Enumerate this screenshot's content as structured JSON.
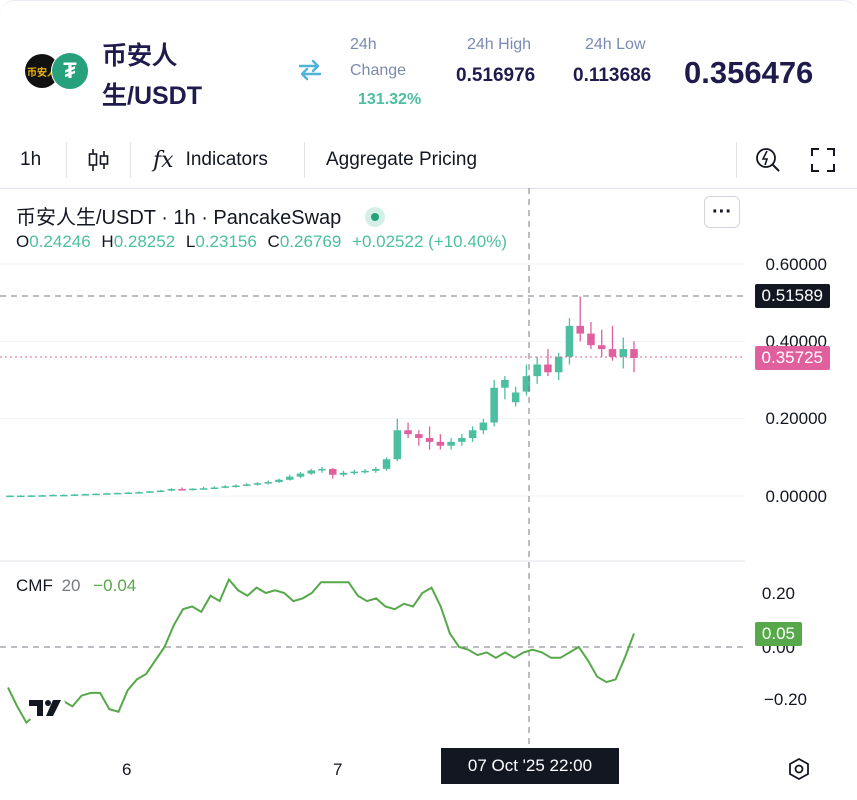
{
  "header": {
    "pair_line1": "币安人",
    "pair_line2": "生/USDT",
    "logo_left_text": "币安人",
    "logo_right_text": "₮",
    "change_label_1": "24h",
    "change_label_2": "Change",
    "change_value": "131.32%",
    "high_label": "24h High",
    "high_value": "0.516976",
    "low_label": "24h Low",
    "low_value": "0.113686",
    "price": "0.356476"
  },
  "toolbar": {
    "interval": "1h",
    "indicators": "Indicators",
    "aggregate": "Aggregate Pricing",
    "fx_icon": "fx"
  },
  "legend": {
    "title": "币安人生/USDT · 1h · PancakeSwap",
    "o_label": "O",
    "o_val": "0.24246",
    "h_label": "H",
    "h_val": "0.28252",
    "l_label": "L",
    "l_val": "0.23156",
    "c_label": "C",
    "c_val": "0.26769",
    "change": "+0.02522 (+10.40%)",
    "more": "···"
  },
  "price_axis": {
    "labels": [
      "0.60000",
      "0.40000",
      "0.20000",
      "0.00000"
    ],
    "crosshair_tag": "0.51589",
    "last_price_tag": "0.35725"
  },
  "cmf": {
    "label": "CMF",
    "period": "20",
    "value": "−0.04",
    "axis_labels": [
      "0.20",
      "0.00",
      "−0.20"
    ],
    "current_tag": "0.05"
  },
  "time_axis": {
    "labels": [
      "6",
      "7"
    ],
    "crosshair_time": "07 Oct '25   22:00"
  },
  "colors": {
    "up": "#4cbfa0",
    "down": "#e0609e",
    "cmf_line": "#57a84a",
    "accent_navy": "#1f1b4d"
  },
  "icons": [
    "swap-arrows-icon",
    "candles-icon",
    "fx-icon",
    "replay-icon",
    "fullscreen-icon",
    "settings-hex-icon",
    "tradingview-logo-icon"
  ],
  "chart_data": {
    "type": "candlestick",
    "price_ylim": [
      0.0,
      0.6
    ],
    "candles": [
      [
        0.001,
        0.002,
        0.0,
        0.001
      ],
      [
        0.001,
        0.002,
        0.0,
        0.001
      ],
      [
        0.001,
        0.002,
        0.0,
        0.0015
      ],
      [
        0.0015,
        0.003,
        0.001,
        0.002
      ],
      [
        0.002,
        0.004,
        0.001,
        0.003
      ],
      [
        0.003,
        0.004,
        0.002,
        0.003
      ],
      [
        0.003,
        0.005,
        0.002,
        0.004
      ],
      [
        0.004,
        0.006,
        0.003,
        0.005
      ],
      [
        0.005,
        0.007,
        0.004,
        0.006
      ],
      [
        0.006,
        0.008,
        0.005,
        0.007
      ],
      [
        0.007,
        0.009,
        0.006,
        0.008
      ],
      [
        0.008,
        0.01,
        0.007,
        0.009
      ],
      [
        0.009,
        0.012,
        0.008,
        0.01
      ],
      [
        0.01,
        0.013,
        0.009,
        0.012
      ],
      [
        0.012,
        0.016,
        0.011,
        0.014
      ],
      [
        0.014,
        0.02,
        0.012,
        0.018
      ],
      [
        0.018,
        0.022,
        0.015,
        0.016
      ],
      [
        0.016,
        0.02,
        0.014,
        0.019
      ],
      [
        0.019,
        0.024,
        0.017,
        0.02
      ],
      [
        0.02,
        0.025,
        0.018,
        0.022
      ],
      [
        0.022,
        0.028,
        0.02,
        0.025
      ],
      [
        0.025,
        0.03,
        0.022,
        0.027
      ],
      [
        0.027,
        0.033,
        0.025,
        0.03
      ],
      [
        0.03,
        0.036,
        0.027,
        0.033
      ],
      [
        0.033,
        0.04,
        0.03,
        0.036
      ],
      [
        0.036,
        0.045,
        0.034,
        0.042
      ],
      [
        0.042,
        0.055,
        0.04,
        0.05
      ],
      [
        0.05,
        0.062,
        0.046,
        0.058
      ],
      [
        0.058,
        0.07,
        0.055,
        0.066
      ],
      [
        0.066,
        0.075,
        0.06,
        0.07
      ],
      [
        0.07,
        0.072,
        0.045,
        0.055
      ],
      [
        0.055,
        0.065,
        0.05,
        0.06
      ],
      [
        0.06,
        0.068,
        0.055,
        0.063
      ],
      [
        0.063,
        0.07,
        0.058,
        0.065
      ],
      [
        0.065,
        0.075,
        0.06,
        0.07
      ],
      [
        0.07,
        0.1,
        0.065,
        0.095
      ],
      [
        0.095,
        0.2,
        0.09,
        0.17
      ],
      [
        0.17,
        0.19,
        0.15,
        0.16
      ],
      [
        0.16,
        0.17,
        0.13,
        0.15
      ],
      [
        0.15,
        0.18,
        0.12,
        0.14
      ],
      [
        0.14,
        0.16,
        0.12,
        0.13
      ],
      [
        0.13,
        0.15,
        0.12,
        0.14
      ],
      [
        0.14,
        0.16,
        0.13,
        0.15
      ],
      [
        0.15,
        0.18,
        0.14,
        0.17
      ],
      [
        0.17,
        0.2,
        0.16,
        0.19
      ],
      [
        0.19,
        0.3,
        0.18,
        0.28
      ],
      [
        0.28,
        0.31,
        0.25,
        0.3
      ],
      [
        0.24246,
        0.28252,
        0.23156,
        0.26769
      ],
      [
        0.27,
        0.34,
        0.26,
        0.31
      ],
      [
        0.31,
        0.36,
        0.29,
        0.34
      ],
      [
        0.34,
        0.38,
        0.31,
        0.32
      ],
      [
        0.32,
        0.37,
        0.3,
        0.36
      ],
      [
        0.36,
        0.46,
        0.34,
        0.44
      ],
      [
        0.44,
        0.51589,
        0.4,
        0.42
      ],
      [
        0.42,
        0.45,
        0.38,
        0.39
      ],
      [
        0.39,
        0.43,
        0.36,
        0.38
      ],
      [
        0.38,
        0.44,
        0.35,
        0.36
      ],
      [
        0.36,
        0.41,
        0.33,
        0.38
      ],
      [
        0.38,
        0.4,
        0.32,
        0.357
      ]
    ],
    "cmf_ylim": [
      -0.3,
      0.3
    ],
    "cmf_values": [
      -0.15,
      -0.22,
      -0.28,
      -0.25,
      -0.2,
      -0.18,
      -0.2,
      -0.22,
      -0.18,
      -0.17,
      -0.17,
      -0.23,
      -0.24,
      -0.16,
      -0.12,
      -0.1,
      -0.05,
      0.0,
      0.08,
      0.14,
      0.15,
      0.13,
      0.19,
      0.17,
      0.25,
      0.21,
      0.19,
      0.22,
      0.2,
      0.21,
      0.2,
      0.17,
      0.18,
      0.2,
      0.24,
      0.24,
      0.24,
      0.24,
      0.19,
      0.17,
      0.18,
      0.15,
      0.14,
      0.16,
      0.15,
      0.2,
      0.22,
      0.15,
      0.05,
      0.0,
      -0.01,
      -0.03,
      -0.02,
      -0.04,
      -0.02,
      -0.04,
      -0.02,
      -0.01,
      -0.02,
      -0.04,
      -0.04,
      -0.02,
      0.0,
      -0.05,
      -0.11,
      -0.13,
      -0.12,
      -0.04,
      0.05
    ]
  }
}
